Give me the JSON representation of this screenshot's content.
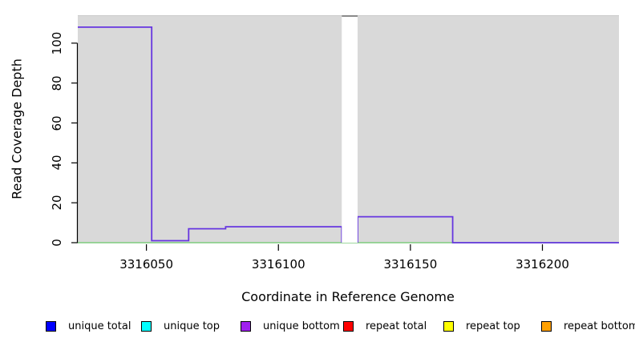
{
  "figure": {
    "background": "#ffffff",
    "text_color": "#000000"
  },
  "chart_data": {
    "type": "line",
    "subtype": "step-coverage",
    "title": "",
    "xlabel": "Coordinate in Reference Genome",
    "ylabel": "Read Coverage Depth",
    "xlim": [
      3316024,
      3316229
    ],
    "ylim": [
      0,
      114
    ],
    "grid": false,
    "plot_background": "#d9d9d9",
    "plot_top_border_color": "#cccccc",
    "legend_position": "bottom",
    "x_ticks": [
      {
        "value": 3316050,
        "label": "3316050"
      },
      {
        "value": 3316100,
        "label": "3316100"
      },
      {
        "value": 3316150,
        "label": "3316150"
      },
      {
        "value": 3316200,
        "label": "3316200"
      }
    ],
    "y_ticks": [
      {
        "value": 0,
        "label": "0"
      },
      {
        "value": 20,
        "label": "20"
      },
      {
        "value": 40,
        "label": "40"
      },
      {
        "value": 60,
        "label": "60"
      },
      {
        "value": 80,
        "label": "80"
      },
      {
        "value": 100,
        "label": "100"
      }
    ],
    "masked_region": {
      "x_start": 3316124,
      "x_end": 3316130,
      "color": "#ffffff",
      "cap_color": "#8a8a8a"
    },
    "series": [
      {
        "name": "zero-coverage baseline",
        "color": "#7ecb7e",
        "line_width": 1.5,
        "steps": [
          {
            "x_start": 3316024,
            "x_end": 3316229,
            "depth": 0
          }
        ]
      },
      {
        "name": "coverage depth (unique bottom over unique total)",
        "color": "#6636e0",
        "line_width": 1.8,
        "steps": [
          {
            "x_start": 3316024,
            "x_end": 3316052,
            "depth": 108
          },
          {
            "x_start": 3316052,
            "x_end": 3316066,
            "depth": 1
          },
          {
            "x_start": 3316066,
            "x_end": 3316080,
            "depth": 7
          },
          {
            "x_start": 3316080,
            "x_end": 3316124,
            "depth": 8
          },
          {
            "x_start": 3316130,
            "x_end": 3316166,
            "depth": 13
          },
          {
            "x_start": 3316166,
            "x_end": 3316229,
            "depth": 0
          }
        ]
      }
    ]
  },
  "legend": {
    "items": [
      {
        "label": "unique total",
        "color": "#0000ff"
      },
      {
        "label": "unique top",
        "color": "#00ffff"
      },
      {
        "label": "unique bottom",
        "color": "#a020f0"
      },
      {
        "label": "repeat total",
        "color": "#ff0000"
      },
      {
        "label": "repeat top",
        "color": "#ffff00"
      },
      {
        "label": "repeat bottom",
        "color": "#ffa000"
      }
    ]
  }
}
